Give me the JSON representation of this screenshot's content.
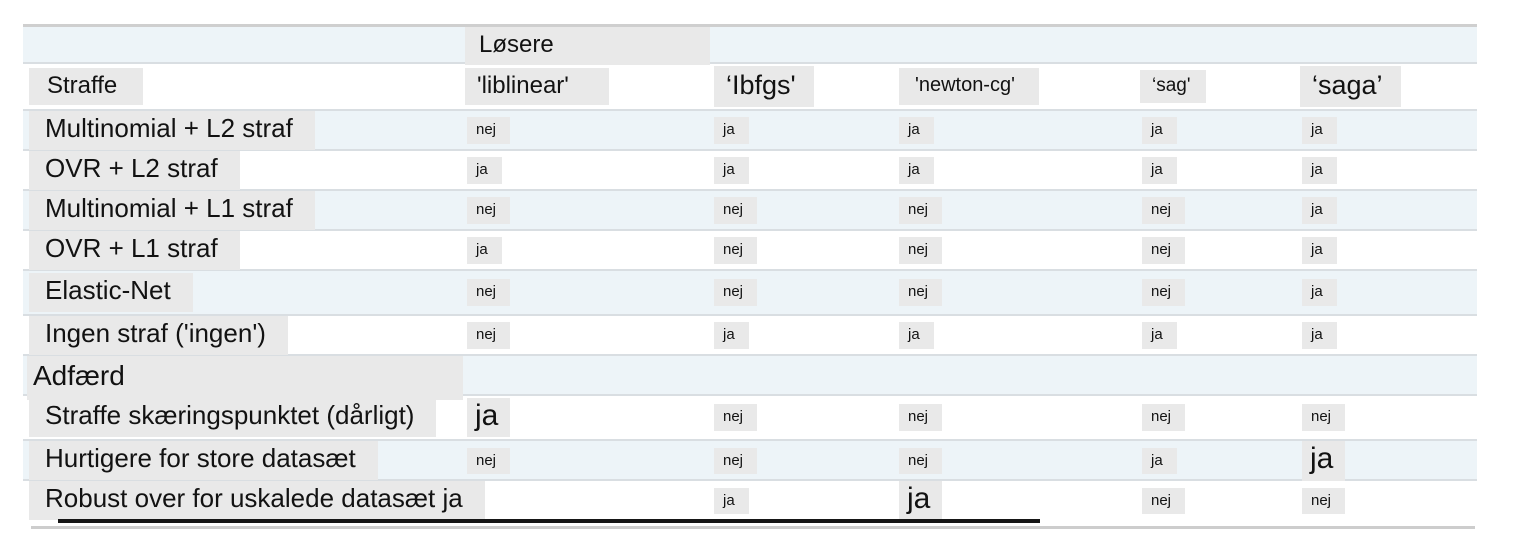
{
  "colors": {
    "stripe_blue": "#edf4f8",
    "highlight_gray": "#e9e9e9",
    "separator_gray": "#d9dee2",
    "top_border_gray": "#cfcfcf",
    "bottom_border_black": "#161616",
    "text": "#121212"
  },
  "table": {
    "solvers_group_label": "Løsere",
    "header": {
      "label": "Straffe",
      "solvers": [
        "'liblinear'",
        "‘Ibfgs'",
        "'newton-cg'",
        "‘sag'",
        "‘saga’"
      ]
    },
    "penalty_rows": [
      {
        "label": "Multinomial + L2 straf",
        "values": [
          "nej",
          "ja",
          "ja",
          "ja",
          "ja"
        ],
        "big": -1
      },
      {
        "label": "OVR + L2 straf",
        "values": [
          "ja",
          "ja",
          "ja",
          "ja",
          "ja"
        ],
        "big": -1
      },
      {
        "label": "Multinomial + L1 straf",
        "values": [
          "nej",
          "nej",
          "nej",
          "nej",
          "ja"
        ],
        "big": -1
      },
      {
        "label": "OVR + L1 straf",
        "values": [
          "ja",
          "nej",
          "nej",
          "nej",
          "ja"
        ],
        "big": -1
      },
      {
        "label": "Elastic-Net",
        "values": [
          "nej",
          "nej",
          "nej",
          "nej",
          "ja"
        ],
        "big": -1
      },
      {
        "label": "Ingen straf ('ingen')",
        "values": [
          "nej",
          "ja",
          "ja",
          "ja",
          "ja"
        ],
        "big": -1
      }
    ],
    "section_label": "Adfærd",
    "behavior_rows": [
      {
        "label": "Straffe skæringspunktet (dårligt)",
        "values": [
          "ja",
          "nej",
          "nej",
          "nej",
          "nej"
        ],
        "big": 0
      },
      {
        "label": "Hurtigere for store datasæt",
        "values": [
          "nej",
          "nej",
          "nej",
          "ja",
          "ja"
        ],
        "big": 4
      },
      {
        "label": "Robust over for uskalede datasæt ja",
        "values": [
          "",
          "ja",
          "ja",
          "nej",
          "nej"
        ],
        "big": 2
      }
    ]
  }
}
